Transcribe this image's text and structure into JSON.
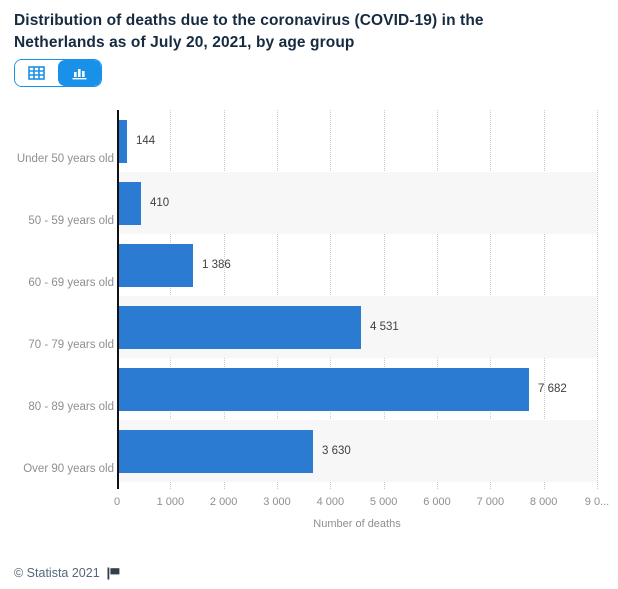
{
  "title": "Distribution of deaths due to the coronavirus (COVID-19) in the Netherlands as of July 20, 2021, by age group",
  "toolbar": {
    "table_view": "table-view",
    "chart_view": "chart-view"
  },
  "chart_data": {
    "type": "bar",
    "orientation": "horizontal",
    "categories": [
      "Under 50 years old",
      "50 - 59 years old",
      "60 - 69 years old",
      "70 - 79 years old",
      "80 - 89 years old",
      "Over 90 years old"
    ],
    "values": [
      144,
      410,
      1386,
      4531,
      7682,
      3630
    ],
    "value_labels": [
      "144",
      "410",
      "1 386",
      "4 531",
      "7 682",
      "3 630"
    ],
    "title": "",
    "xlabel": "Number of deaths",
    "ylabel": "",
    "xlim": [
      0,
      9000
    ],
    "x_ticks": [
      0,
      1000,
      2000,
      3000,
      4000,
      5000,
      6000,
      7000,
      8000,
      9000
    ],
    "x_tick_labels": [
      "0",
      "1 000",
      "2 000",
      "3 000",
      "4 000",
      "5 000",
      "6 000",
      "7 000",
      "8 000",
      "9 0..."
    ],
    "grid": "vertical-dotted",
    "legend": "none",
    "row_banding": "alternate"
  },
  "footer": {
    "copyright": "© Statista 2021"
  },
  "colors": {
    "bar": "#2b7bd3",
    "accent": "#1a91e8",
    "title_text": "#162b40",
    "band": "#f7f7f7",
    "muted_text": "#8f8f8f",
    "value_text": "#3f3f3f",
    "footer_text": "#54687e",
    "flag": "#333e4c"
  }
}
